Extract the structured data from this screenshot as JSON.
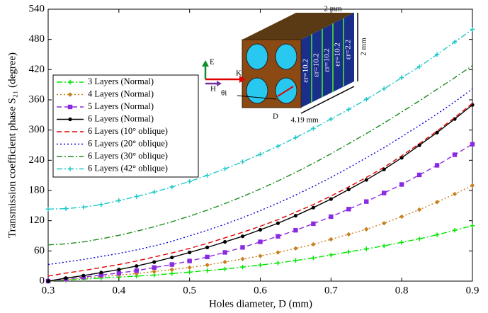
{
  "chart_data": {
    "type": "line",
    "x_label": "Holes diameter, D (mm)",
    "y_label": "Transmission coefficient phase S₂₁ (degree)",
    "x": [
      0.3,
      0.325,
      0.35,
      0.375,
      0.4,
      0.425,
      0.45,
      0.475,
      0.5,
      0.525,
      0.55,
      0.575,
      0.6,
      0.625,
      0.65,
      0.675,
      0.7,
      0.725,
      0.75,
      0.775,
      0.8,
      0.825,
      0.85,
      0.875,
      0.9
    ],
    "xlim": [
      0.3,
      0.9
    ],
    "xticks": [
      0.3,
      0.4,
      0.5,
      0.6,
      0.7,
      0.8,
      0.9
    ],
    "ylim": [
      0,
      540
    ],
    "yticks": [
      0,
      60,
      120,
      180,
      240,
      300,
      360,
      420,
      480,
      540
    ],
    "grid": false,
    "series": [
      {
        "name": "3 Layers (Normal)",
        "color": "#00e600",
        "dash": "dashdot",
        "marker": "plus",
        "values": [
          0,
          2,
          4,
          6,
          8,
          10,
          12,
          15,
          18,
          21,
          24,
          28,
          32,
          36,
          41,
          46,
          52,
          58,
          64,
          70,
          77,
          84,
          92,
          101,
          110
        ]
      },
      {
        "name": "4 Layers (Normal)",
        "color": "#c8801e",
        "dash": "dot",
        "marker": "diamond",
        "values": [
          0,
          3,
          6,
          9,
          12,
          15,
          19,
          23,
          27,
          32,
          38,
          44,
          50,
          57,
          65,
          73,
          83,
          93,
          103,
          115,
          128,
          142,
          157,
          173,
          190
        ]
      },
      {
        "name": "5 Layers (Normal)",
        "color": "#8a2be2",
        "dash": "dash",
        "marker": "square",
        "values": [
          0,
          4,
          8,
          12,
          16,
          21,
          27,
          33,
          40,
          48,
          57,
          67,
          78,
          89,
          101,
          114,
          128,
          143,
          158,
          175,
          192,
          211,
          230,
          251,
          272
        ]
      },
      {
        "name": "6 Layers (Normal)",
        "color": "#000000",
        "dash": "solid",
        "marker": "circle",
        "values": [
          0,
          6,
          11,
          17,
          23,
          30,
          38,
          47,
          57,
          67,
          78,
          89,
          102,
          115,
          130,
          146,
          163,
          182,
          201,
          222,
          245,
          270,
          295,
          322,
          350
        ]
      },
      {
        "name": "6 Layers (10° oblique)",
        "color": "#e00000",
        "dash": "dash",
        "marker": "none",
        "values": [
          10,
          16,
          21,
          27,
          33,
          40,
          48,
          56,
          65,
          75,
          86,
          97,
          109,
          122,
          137,
          152,
          169,
          187,
          206,
          226,
          249,
          273,
          298,
          325,
          353
        ]
      },
      {
        "name": "6 Layers (20° oblique)",
        "color": "#0000dd",
        "dash": "dot",
        "marker": "none",
        "values": [
          33,
          38,
          43,
          49,
          55,
          62,
          70,
          79,
          90,
          101,
          113,
          126,
          140,
          155,
          171,
          188,
          206,
          225,
          245,
          265,
          287,
          309,
          332,
          356,
          382
        ]
      },
      {
        "name": "6 Layers (30° oblique)",
        "color": "#1e8c1e",
        "dash": "dashdot",
        "marker": "none",
        "values": [
          72,
          74,
          78,
          84,
          91,
          99,
          108,
          118,
          129,
          141,
          154,
          168,
          183,
          199,
          216,
          234,
          253,
          273,
          293,
          314,
          336,
          358,
          381,
          404,
          428
        ]
      },
      {
        "name": "6 Layers (42° oblique)",
        "color": "#1ec8c8",
        "dash": "dashdot",
        "marker": "plus",
        "values": [
          143,
          144,
          147,
          152,
          160,
          168,
          177,
          187,
          198,
          210,
          223,
          237,
          252,
          268,
          285,
          303,
          322,
          341,
          361,
          382,
          404,
          426,
          450,
          475,
          500
        ]
      }
    ],
    "legend": "upper left",
    "annotations": [
      "2 mm",
      "2 mm",
      "4.19 mm",
      "εr=10.2",
      "εr=10.2",
      "εr=10.2",
      "εr=10.2",
      "εr=2.2",
      "E",
      "K",
      "H",
      "θi",
      "D"
    ]
  }
}
